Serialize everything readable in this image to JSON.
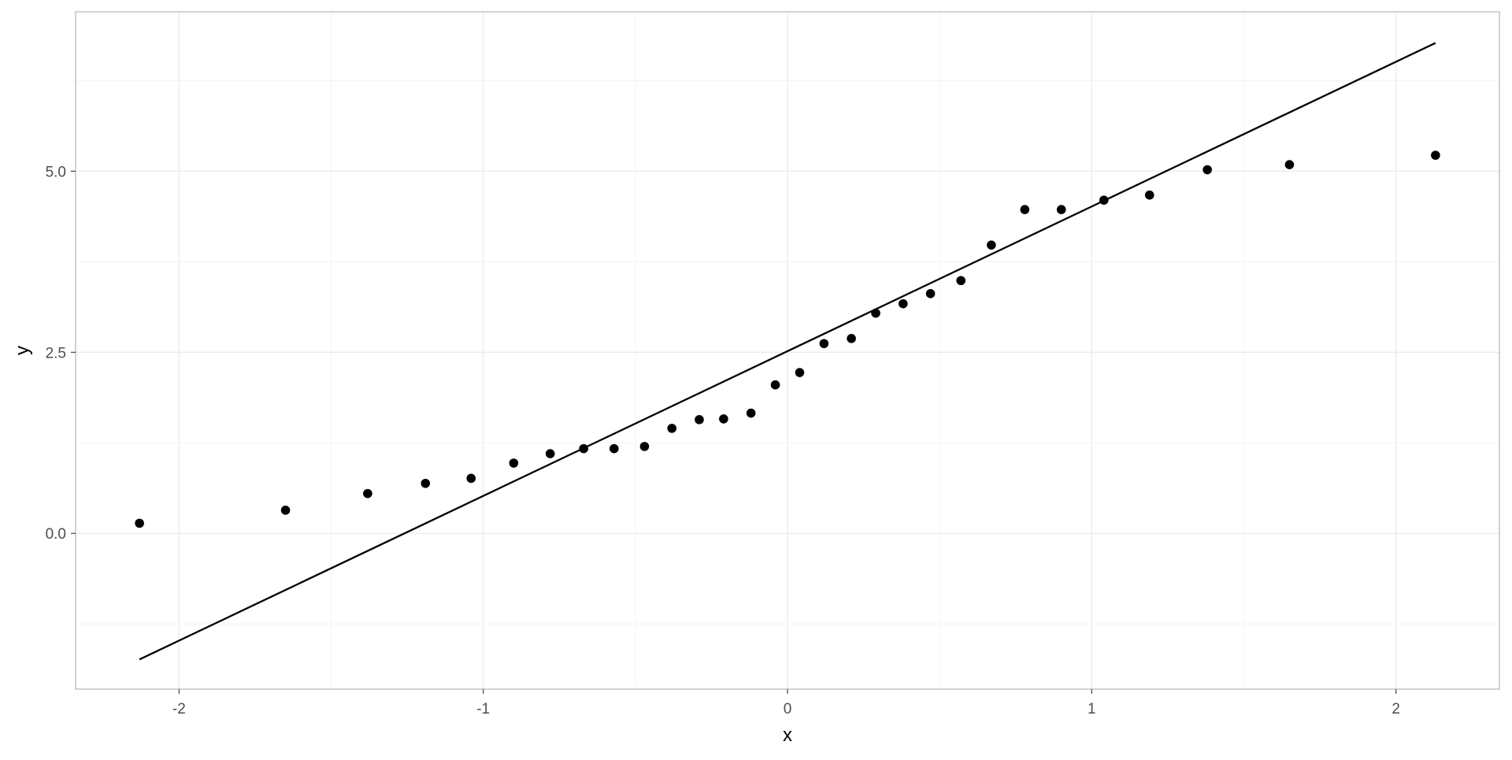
{
  "chart_data": {
    "type": "scatter",
    "title": "",
    "xlabel": "x",
    "ylabel": "y",
    "xlim": [
      -2.34,
      2.34
    ],
    "ylim": [
      -2.15,
      7.2
    ],
    "x_ticks": [
      -2,
      -1,
      0,
      1,
      2
    ],
    "x_tick_labels": [
      "-2",
      "-1",
      "0",
      "1",
      "2"
    ],
    "y_ticks": [
      0,
      2.5,
      5
    ],
    "y_tick_labels": [
      "0.0",
      "2.5",
      "5.0"
    ],
    "grid": true,
    "legend": "none",
    "colors": {
      "points": "#000000",
      "line": "#000000",
      "grid": "#ebebeb",
      "panel_border": "#b3b3b3",
      "background": "#ffffff"
    },
    "series": [
      {
        "kind": "points",
        "x": [
          -2.13,
          -1.65,
          -1.38,
          -1.19,
          -1.04,
          -0.9,
          -0.78,
          -0.67,
          -0.57,
          -0.47,
          -0.38,
          -0.29,
          -0.21,
          -0.12,
          -0.04,
          0.04,
          0.12,
          0.21,
          0.29,
          0.38,
          0.47,
          0.57,
          0.67,
          0.78,
          0.9,
          1.04,
          1.19,
          1.38,
          1.65,
          2.13
        ],
        "y": [
          0.14,
          0.32,
          0.55,
          0.69,
          0.76,
          0.97,
          1.1,
          1.17,
          1.17,
          1.2,
          1.45,
          1.57,
          1.58,
          1.66,
          2.05,
          2.22,
          2.62,
          2.69,
          3.04,
          3.17,
          3.31,
          3.49,
          3.98,
          4.47,
          4.47,
          4.6,
          4.67,
          5.02,
          5.09,
          5.22
        ]
      },
      {
        "kind": "line",
        "x": [
          -2.13,
          2.13
        ],
        "y": [
          -1.74,
          6.77
        ]
      }
    ]
  }
}
